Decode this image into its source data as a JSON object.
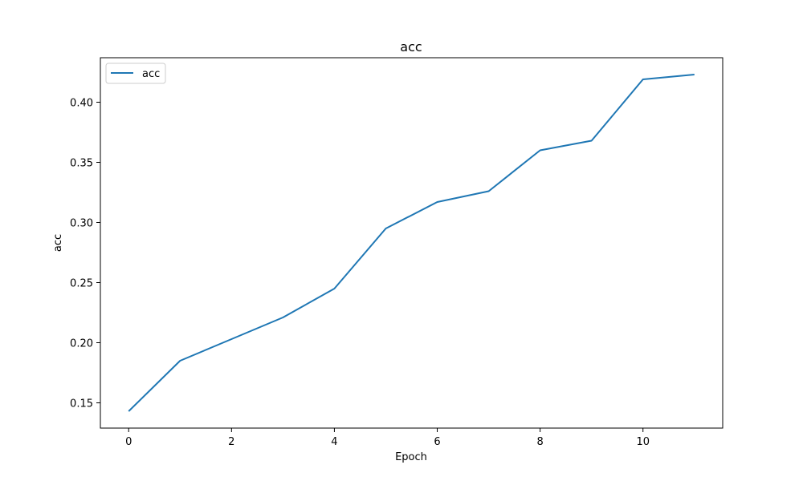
{
  "chart_data": {
    "type": "line",
    "title": "acc",
    "xlabel": "Epoch",
    "ylabel": "acc",
    "x": [
      0,
      1,
      2,
      3,
      4,
      5,
      6,
      7,
      8,
      9,
      10,
      11
    ],
    "series": [
      {
        "name": "acc",
        "color": "#1f77b4",
        "values": [
          0.143,
          0.185,
          0.203,
          0.221,
          0.245,
          0.295,
          0.317,
          0.326,
          0.36,
          0.368,
          0.419,
          0.423
        ]
      }
    ],
    "xlim": [
      -0.55,
      11.55
    ],
    "ylim": [
      0.129,
      0.437
    ],
    "xticks": [
      0,
      2,
      4,
      6,
      8,
      10
    ],
    "xtick_labels": [
      "0",
      "2",
      "4",
      "6",
      "8",
      "10"
    ],
    "yticks": [
      0.15,
      0.2,
      0.25,
      0.3,
      0.35,
      0.4
    ],
    "ytick_labels": [
      "0.15",
      "0.20",
      "0.25",
      "0.30",
      "0.35",
      "0.40"
    ],
    "grid": false,
    "legend": "upper left"
  }
}
